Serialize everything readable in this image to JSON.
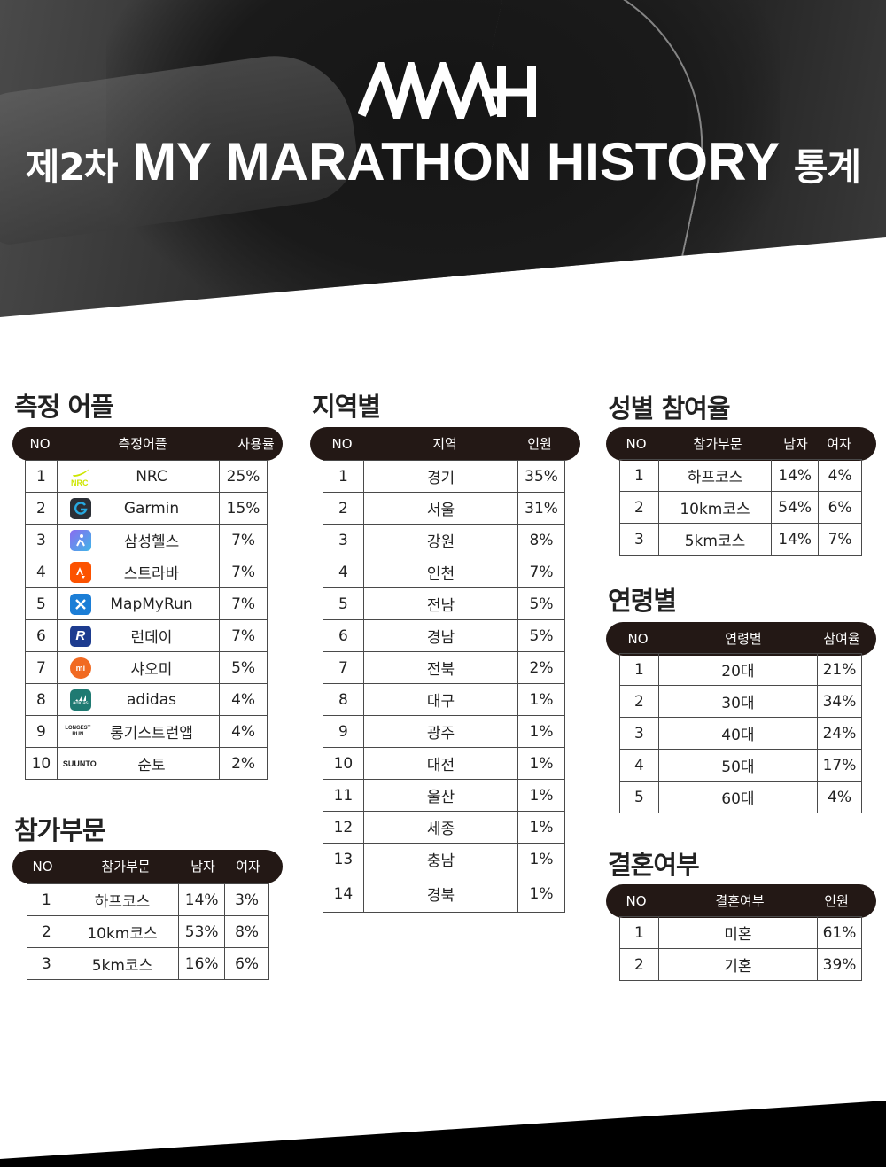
{
  "header": {
    "title_kr_prefix": "제2차",
    "title_en": "MY MARATHON HISTORY",
    "title_kr_suffix": "통계"
  },
  "apps": {
    "title": "측정 어플",
    "columns": [
      "NO",
      "측정어플",
      "사용률"
    ],
    "rows": [
      {
        "no": "1",
        "name": "NRC",
        "icon": "nike-run-club-icon",
        "value": "25%"
      },
      {
        "no": "2",
        "name": "Garmin",
        "icon": "garmin-connect-icon",
        "value": "15%"
      },
      {
        "no": "3",
        "name": "삼성헬스",
        "icon": "samsung-health-icon",
        "value": "7%"
      },
      {
        "no": "4",
        "name": "스트라바",
        "icon": "strava-icon",
        "value": "7%"
      },
      {
        "no": "5",
        "name": "MapMyRun",
        "icon": "mapmyrun-icon",
        "value": "7%"
      },
      {
        "no": "6",
        "name": "런데이",
        "icon": "runday-icon",
        "value": "7%"
      },
      {
        "no": "7",
        "name": "샤오미",
        "icon": "xiaomi-icon",
        "value": "5%"
      },
      {
        "no": "8",
        "name": "adidas",
        "icon": "adidas-icon",
        "value": "4%"
      },
      {
        "no": "9",
        "name": "롱기스트런앱",
        "icon": "longest-run-icon",
        "value": "4%"
      },
      {
        "no": "10",
        "name": "순토",
        "icon": "suunto-icon",
        "value": "2%"
      }
    ],
    "icon_text": {
      "nrc": "NRC",
      "longest": "LONGEST RUN",
      "suunto": "SUUNTO",
      "adidas": "adidas",
      "xiaomi": "mi",
      "runday": "R"
    }
  },
  "divisions": {
    "title": "참가부문",
    "columns": [
      "NO",
      "참가부문",
      "남자",
      "여자"
    ],
    "rows": [
      {
        "no": "1",
        "name": "하프코스",
        "male": "14%",
        "female": "3%"
      },
      {
        "no": "2",
        "name": "10km코스",
        "male": "53%",
        "female": "8%"
      },
      {
        "no": "3",
        "name": "5km코스",
        "male": "16%",
        "female": "6%"
      }
    ]
  },
  "regions": {
    "title": "지역별",
    "columns": [
      "NO",
      "지역",
      "인원"
    ],
    "rows": [
      {
        "no": "1",
        "name": "경기",
        "value": "35%"
      },
      {
        "no": "2",
        "name": "서울",
        "value": "31%"
      },
      {
        "no": "3",
        "name": "강원",
        "value": "8%"
      },
      {
        "no": "4",
        "name": "인천",
        "value": "7%"
      },
      {
        "no": "5",
        "name": "전남",
        "value": "5%"
      },
      {
        "no": "6",
        "name": "경남",
        "value": "5%"
      },
      {
        "no": "7",
        "name": "전북",
        "value": "2%"
      },
      {
        "no": "8",
        "name": "대구",
        "value": "1%"
      },
      {
        "no": "9",
        "name": "광주",
        "value": "1%"
      },
      {
        "no": "10",
        "name": "대전",
        "value": "1%"
      },
      {
        "no": "11",
        "name": "울산",
        "value": "1%"
      },
      {
        "no": "12",
        "name": "세종",
        "value": "1%"
      },
      {
        "no": "13",
        "name": "충남",
        "value": "1%"
      },
      {
        "no": "14",
        "name": "경북",
        "value": "1%"
      }
    ]
  },
  "gender": {
    "title": "성별 참여율",
    "columns": [
      "NO",
      "참가부문",
      "남자",
      "여자"
    ],
    "rows": [
      {
        "no": "1",
        "name": "하프코스",
        "male": "14%",
        "female": "4%"
      },
      {
        "no": "2",
        "name": "10km코스",
        "male": "54%",
        "female": "6%"
      },
      {
        "no": "3",
        "name": "5km코스",
        "male": "14%",
        "female": "7%"
      }
    ]
  },
  "ages": {
    "title": "연령별",
    "columns": [
      "NO",
      "연령별",
      "참여율"
    ],
    "rows": [
      {
        "no": "1",
        "name": "20대",
        "value": "21%"
      },
      {
        "no": "2",
        "name": "30대",
        "value": "34%"
      },
      {
        "no": "3",
        "name": "40대",
        "value": "24%"
      },
      {
        "no": "4",
        "name": "50대",
        "value": "17%"
      },
      {
        "no": "5",
        "name": "60대",
        "value": "4%"
      }
    ]
  },
  "marriage": {
    "title": "결혼여부",
    "columns": [
      "NO",
      "결혼여부",
      "인원"
    ],
    "rows": [
      {
        "no": "1",
        "name": "미혼",
        "value": "61%"
      },
      {
        "no": "2",
        "name": "기혼",
        "value": "39%"
      }
    ]
  },
  "colors": {
    "header_pill": "#231815",
    "nrc": "#cde600",
    "garmin": "#1b6fa8",
    "samsung_health": "#6a7cf0",
    "strava": "#fc5200",
    "mapmyrun": "#1c7ed6",
    "runday": "#1d3c8f",
    "xiaomi": "#f16a22",
    "adidas": "#1f7a72"
  }
}
